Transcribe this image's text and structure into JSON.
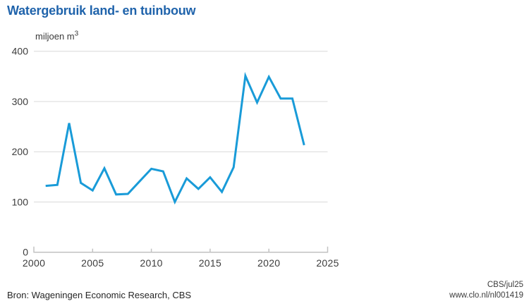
{
  "title": "Watergebruik land- en tuinbouw",
  "unit": {
    "text": "miljoen m",
    "sup": "3"
  },
  "footer": {
    "source": "Bron: Wageningen Economic Research, CBS",
    "credit": "CBS/jul25",
    "url": "www.clo.nl/nl001419"
  },
  "colors": {
    "title": "#1f63ab",
    "line": "#199bd8",
    "grid": "#d9d9d9",
    "axis": "#c2c2c2",
    "text": "#3c3c3c"
  },
  "chart_data": {
    "type": "line",
    "title": "Watergebruik land- en tuinbouw",
    "xlabel": "",
    "ylabel": "miljoen m3",
    "x": [
      2001,
      2002,
      2003,
      2004,
      2005,
      2006,
      2007,
      2008,
      2009,
      2010,
      2011,
      2012,
      2013,
      2014,
      2015,
      2016,
      2017,
      2018,
      2019,
      2020,
      2021,
      2022,
      2023
    ],
    "values": [
      132,
      134,
      257,
      138,
      123,
      167,
      115,
      116,
      141,
      166,
      161,
      100,
      147,
      126,
      149,
      120,
      169,
      351,
      298,
      349,
      306,
      306,
      213
    ],
    "xlim": [
      2000,
      2025
    ],
    "ylim": [
      0,
      400
    ],
    "yticks": [
      0,
      100,
      200,
      300,
      400
    ],
    "xticks": [
      2000,
      2005,
      2010,
      2015,
      2020,
      2025
    ],
    "grid": true,
    "legend": "none",
    "series_name": "Watergebruik land- en tuinbouw"
  }
}
